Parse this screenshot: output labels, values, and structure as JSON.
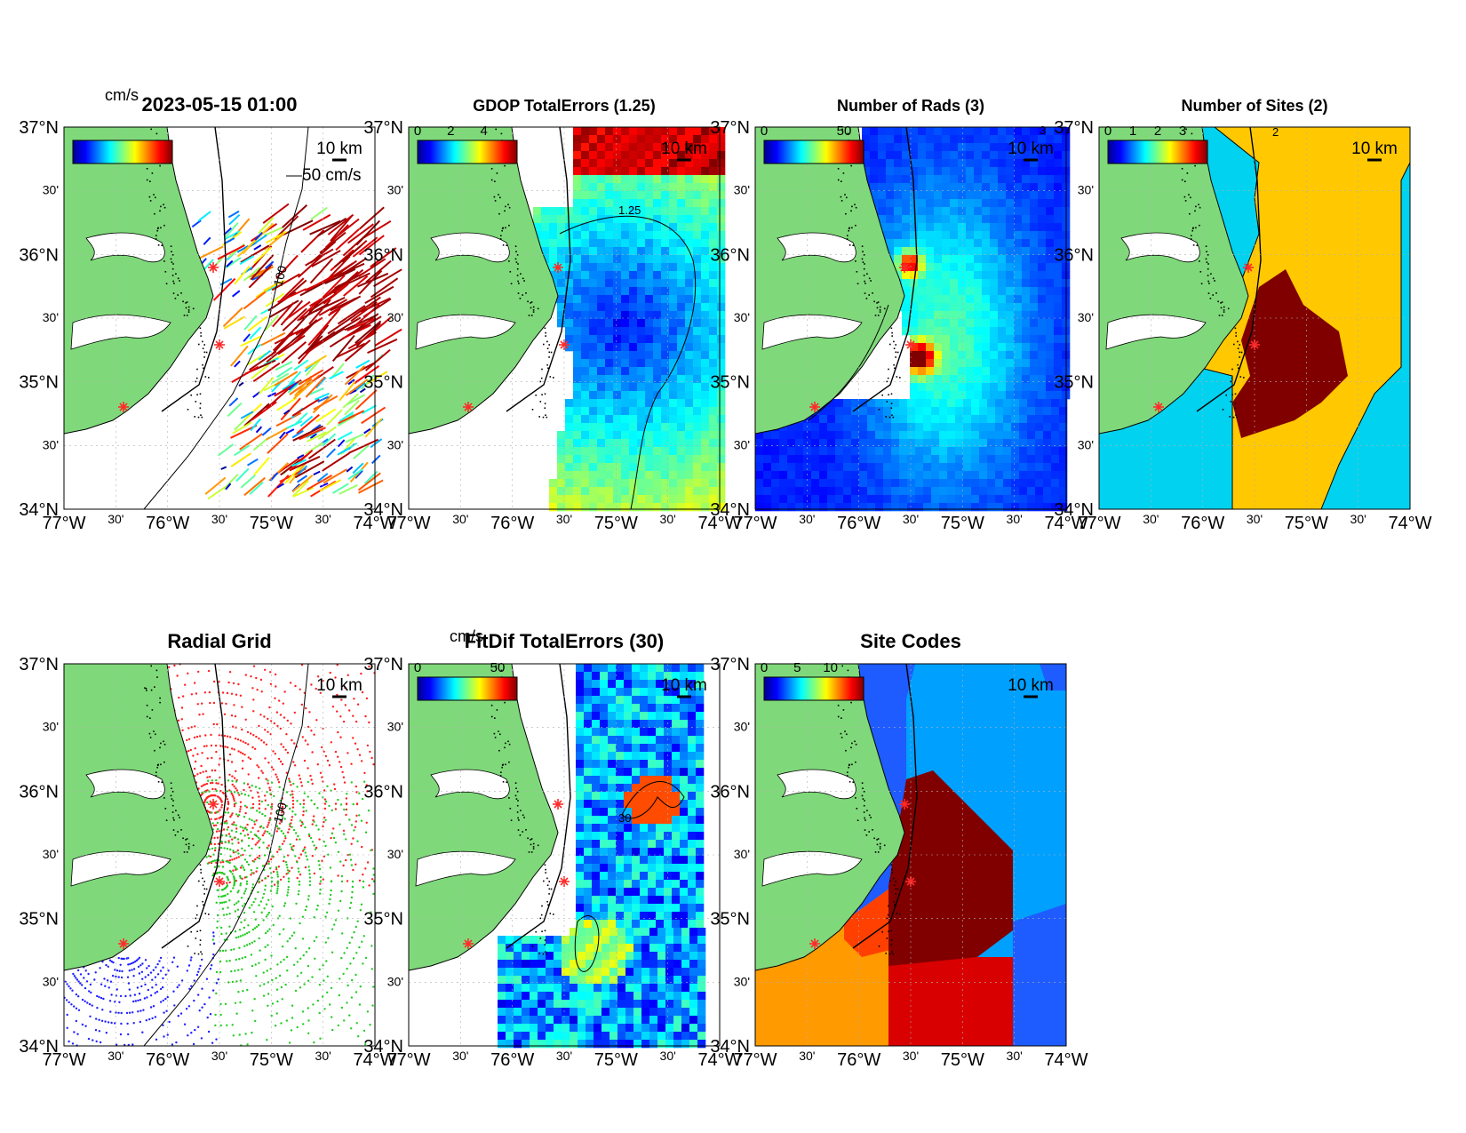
{
  "figure": {
    "lat_ticks": [
      "37°N",
      "30'",
      "36°N",
      "30'",
      "35°N",
      "30'",
      "34°N"
    ],
    "lon_ticks": [
      "77°W",
      "30'",
      "76°W",
      "30'",
      "75°W",
      "30'",
      "74°W"
    ],
    "scale_bar_label": "10 km",
    "stations": [
      "station-north",
      "station-mid",
      "station-south"
    ]
  },
  "panels": [
    {
      "id": "velocity",
      "title": "2023-05-15 01:00",
      "colorbar_label": "cm/s",
      "colorbar_ticks": [],
      "vector_scale_label": "50 cm/s",
      "contour_label": "100"
    },
    {
      "id": "gdop",
      "title": "GDOP TotalErrors (1.25)",
      "colorbar_label": "",
      "colorbar_ticks": [
        "0",
        "2",
        "4"
      ],
      "contour_label": "1.25"
    },
    {
      "id": "nrads",
      "title": "Number of Rads (3)",
      "colorbar_label": "",
      "colorbar_ticks": [
        "0",
        "50"
      ],
      "contour_label": "3"
    },
    {
      "id": "nsites",
      "title": "Number of Sites (2)",
      "colorbar_label": "",
      "colorbar_ticks": [
        "0",
        "1",
        "2",
        "3"
      ],
      "contour_label": "2"
    },
    {
      "id": "radialgrid",
      "title": "Radial Grid",
      "colorbar_label": "",
      "colorbar_ticks": [],
      "contour_label": "100"
    },
    {
      "id": "fitdif",
      "title": "FitDif TotalErrors (30)",
      "colorbar_label": "cm/s",
      "colorbar_ticks": [
        "0",
        "50"
      ],
      "contour_label": "30"
    },
    {
      "id": "sitecodes",
      "title": "Site Codes",
      "colorbar_label": "",
      "colorbar_ticks": [
        "0",
        "5",
        "10"
      ]
    }
  ],
  "chart_data": [
    {
      "type": "heatmap",
      "title": "2023-05-15 01:00",
      "xlim": [
        -77,
        -74
      ],
      "ylim": [
        34,
        37
      ],
      "colorbar_label": "cm/s",
      "vector_scale": "50 cm/s",
      "colors": {
        "land": "#7fd97a",
        "station": "#ff2a2a"
      }
    },
    {
      "type": "heatmap",
      "title": "GDOP TotalErrors (1.25)",
      "xlim": [
        -77,
        -74
      ],
      "ylim": [
        34,
        37
      ],
      "clim_ticks": [
        0,
        2,
        4
      ],
      "contour_level": 1.25
    },
    {
      "type": "heatmap",
      "title": "Number of Rads (3)",
      "xlim": [
        -77,
        -74
      ],
      "ylim": [
        34,
        37
      ],
      "clim_ticks": [
        0,
        50
      ],
      "contour_level": 3
    },
    {
      "type": "heatmap",
      "title": "Number of Sites (2)",
      "xlim": [
        -77,
        -74
      ],
      "ylim": [
        34,
        37
      ],
      "clim_ticks": [
        0,
        1,
        2,
        3
      ],
      "contour_level": 2,
      "colors": {
        "one_site": "#00d2f0",
        "two_sites": "#ffc800",
        "three_sites": "#800000"
      }
    },
    {
      "type": "scatter",
      "title": "Radial Grid",
      "xlim": [
        -77,
        -74
      ],
      "ylim": [
        34,
        37
      ],
      "contour_level": 100,
      "colors": {
        "north_site": "#ff2020",
        "mid_site": "#22cc22",
        "south_site": "#2020ff"
      }
    },
    {
      "type": "heatmap",
      "title": "FitDif TotalErrors (30)",
      "xlim": [
        -77,
        -74
      ],
      "ylim": [
        34,
        37
      ],
      "colorbar_label": "cm/s",
      "clim_ticks": [
        0,
        50
      ],
      "contour_level": 30
    },
    {
      "type": "heatmap",
      "title": "Site Codes",
      "xlim": [
        -77,
        -74
      ],
      "ylim": [
        34,
        37
      ],
      "clim_ticks": [
        0,
        5,
        10
      ]
    }
  ]
}
